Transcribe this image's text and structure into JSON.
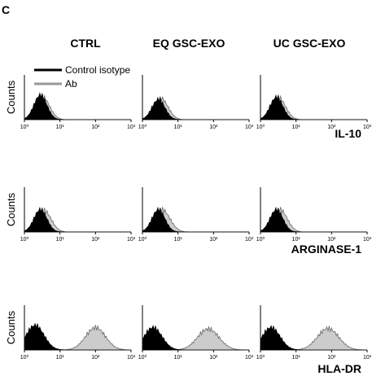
{
  "panel_label": "C",
  "columns": [
    "CTRL",
    "EQ GSC-EXO",
    "UC GSC-EXO"
  ],
  "rows": [
    "IL-10",
    "ARGINASE-1",
    "HLA-DR"
  ],
  "legend": [
    "Control isotype",
    "Ab"
  ],
  "ylabel": "Counts",
  "x_ticks": [
    "10⁰",
    "10¹",
    "10²",
    "10³"
  ],
  "colors": {
    "isotype": "#000000",
    "ab_fill": "#cccccc",
    "ab_line": "#666666",
    "legend_ab": "#999999"
  },
  "chart_data": {
    "type": "area",
    "description_kind": "flow cytometry histograms",
    "xscale": "log",
    "xlim": [
      1,
      1000
    ],
    "xlabel": "",
    "ylabel": "Counts",
    "panels": [
      {
        "row": "IL-10",
        "column": "CTRL",
        "series": [
          {
            "name": "Control isotype",
            "peak_log10": 0.45,
            "width_log10": 0.18,
            "height": 0.55
          },
          {
            "name": "Ab",
            "peak_log10": 0.5,
            "width_log10": 0.2,
            "height": 0.52
          }
        ]
      },
      {
        "row": "IL-10",
        "column": "EQ GSC-EXO",
        "series": [
          {
            "name": "Control isotype",
            "peak_log10": 0.45,
            "width_log10": 0.18,
            "height": 0.45
          },
          {
            "name": "Ab",
            "peak_log10": 0.52,
            "width_log10": 0.2,
            "height": 0.47
          }
        ]
      },
      {
        "row": "IL-10",
        "column": "UC GSC-EXO",
        "series": [
          {
            "name": "Control isotype",
            "peak_log10": 0.45,
            "width_log10": 0.18,
            "height": 0.5
          },
          {
            "name": "Ab",
            "peak_log10": 0.5,
            "width_log10": 0.2,
            "height": 0.5
          }
        ]
      },
      {
        "row": "ARGINASE-1",
        "column": "CTRL",
        "series": [
          {
            "name": "Control isotype",
            "peak_log10": 0.45,
            "width_log10": 0.18,
            "height": 0.5
          },
          {
            "name": "Ab",
            "peak_log10": 0.55,
            "width_log10": 0.2,
            "height": 0.48
          }
        ]
      },
      {
        "row": "ARGINASE-1",
        "column": "EQ GSC-EXO",
        "series": [
          {
            "name": "Control isotype",
            "peak_log10": 0.45,
            "width_log10": 0.18,
            "height": 0.5
          },
          {
            "name": "Ab",
            "peak_log10": 0.55,
            "width_log10": 0.22,
            "height": 0.5
          }
        ]
      },
      {
        "row": "ARGINASE-1",
        "column": "UC GSC-EXO",
        "series": [
          {
            "name": "Control isotype",
            "peak_log10": 0.45,
            "width_log10": 0.18,
            "height": 0.5
          },
          {
            "name": "Ab",
            "peak_log10": 0.55,
            "width_log10": 0.2,
            "height": 0.5
          }
        ]
      },
      {
        "row": "HLA-DR",
        "column": "CTRL",
        "series": [
          {
            "name": "Control isotype",
            "peak_log10": 0.3,
            "width_log10": 0.25,
            "height": 0.55
          },
          {
            "name": "Ab",
            "peak_log10": 2.0,
            "width_log10": 0.28,
            "height": 0.5
          }
        ]
      },
      {
        "row": "HLA-DR",
        "column": "EQ GSC-EXO",
        "series": [
          {
            "name": "Control isotype",
            "peak_log10": 0.3,
            "width_log10": 0.25,
            "height": 0.5
          },
          {
            "name": "Ab",
            "peak_log10": 1.85,
            "width_log10": 0.3,
            "height": 0.47
          }
        ]
      },
      {
        "row": "HLA-DR",
        "column": "UC GSC-EXO",
        "series": [
          {
            "name": "Control isotype",
            "peak_log10": 0.3,
            "width_log10": 0.25,
            "height": 0.5
          },
          {
            "name": "Ab",
            "peak_log10": 1.9,
            "width_log10": 0.3,
            "height": 0.48
          }
        ]
      }
    ]
  }
}
